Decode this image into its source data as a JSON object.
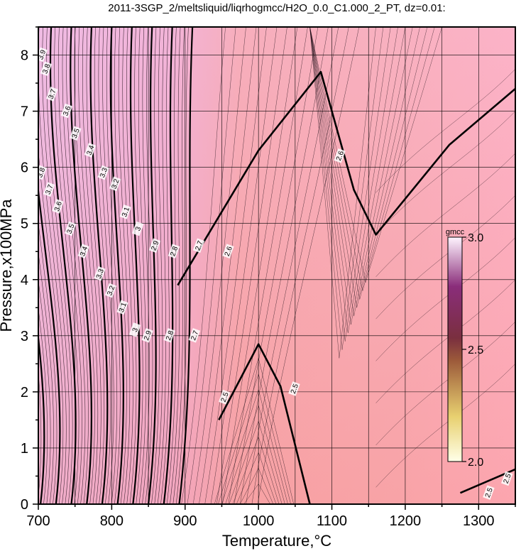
{
  "chart_data": {
    "type": "heatmap",
    "title": "2011-3SGP_2/meltsliquid/liqrhogmcc/H2O_0.0_C1.000_2_PT, dz=0.01:",
    "xlabel": "Temperature,°C",
    "ylabel": "Pressure,x100MPa",
    "xlim": [
      700,
      1350
    ],
    "ylim": [
      0,
      8.5
    ],
    "x_ticks": [
      700,
      800,
      900,
      1000,
      1100,
      1200,
      1300
    ],
    "y_ticks": [
      0,
      1,
      2,
      3,
      4,
      5,
      6,
      7,
      8
    ],
    "x_tick_labels": [
      "700",
      "800",
      "900",
      "1000",
      "1100",
      "1200",
      "1300"
    ],
    "y_tick_labels": [
      "0",
      "1",
      "2",
      "3",
      "4",
      "5",
      "6",
      "7",
      "8"
    ],
    "grid": true,
    "contour_interval": 0.01,
    "colorbar": {
      "label": "gmcc",
      "range": [
        2.0,
        3.0
      ],
      "ticks": [
        2.0,
        2.5,
        3.0
      ],
      "tick_labels": [
        "2.0",
        "2.5",
        "3.0"
      ],
      "colors": [
        "#ffffe0",
        "#8a4a3a",
        "#f8f0ff"
      ]
    },
    "background_colors": {
      "low_T_high_density": "#e9b3dc",
      "mid": "#f3a2a8",
      "high_T": "#fba7b5"
    },
    "bold_contours": [
      {
        "value": "2.5",
        "points": [
          [
            946,
            1.5
          ],
          [
            1000,
            2.85
          ],
          [
            1030,
            2.1
          ],
          [
            1070,
            0
          ]
        ],
        "labels": [
          "2.5",
          "2.5"
        ]
      },
      {
        "value": "2.6",
        "points": [
          [
            890,
            3.9
          ],
          [
            1000,
            6.3
          ],
          [
            1085,
            7.7
          ],
          [
            1130,
            5.6
          ],
          [
            1160,
            4.8
          ],
          [
            1260,
            6.4
          ],
          [
            1350,
            7.4
          ]
        ],
        "labels": [
          "2.6",
          "2.6"
        ]
      },
      {
        "value": "2.5",
        "points": [
          [
            1275,
            0.2
          ],
          [
            1350,
            0.62
          ]
        ],
        "labels": [
          "2.5",
          "2.5"
        ]
      }
    ],
    "contour_labels": [
      {
        "text": "3.9",
        "x": 706,
        "y": 8.0
      },
      {
        "text": "3.8",
        "x": 712,
        "y": 7.75
      },
      {
        "text": "3.7",
        "x": 720,
        "y": 7.3
      },
      {
        "text": "3.6",
        "x": 740,
        "y": 7.0
      },
      {
        "text": "3.5",
        "x": 752,
        "y": 6.6
      },
      {
        "text": "3.4",
        "x": 772,
        "y": 6.3
      },
      {
        "text": "3.3",
        "x": 790,
        "y": 5.9
      },
      {
        "text": "3.2",
        "x": 806,
        "y": 5.7
      },
      {
        "text": "3.1",
        "x": 820,
        "y": 5.2
      },
      {
        "text": "3",
        "x": 837,
        "y": 4.9
      },
      {
        "text": "2.9",
        "x": 860,
        "y": 4.6
      },
      {
        "text": "2.8",
        "x": 886,
        "y": 4.5
      },
      {
        "text": "2.7",
        "x": 920,
        "y": 4.6
      },
      {
        "text": "3.8",
        "x": 705,
        "y": 5.9
      },
      {
        "text": "3.7",
        "x": 716,
        "y": 5.6
      },
      {
        "text": "3.6",
        "x": 728,
        "y": 5.3
      },
      {
        "text": "3.5",
        "x": 745,
        "y": 4.9
      },
      {
        "text": "3.4",
        "x": 763,
        "y": 4.5
      },
      {
        "text": "3.3",
        "x": 785,
        "y": 4.1
      },
      {
        "text": "3.2",
        "x": 800,
        "y": 3.8
      },
      {
        "text": "3.1",
        "x": 816,
        "y": 3.5
      },
      {
        "text": "3",
        "x": 833,
        "y": 3.1
      },
      {
        "text": "2.9",
        "x": 850,
        "y": 3.0
      },
      {
        "text": "2.8",
        "x": 880,
        "y": 3.0
      },
      {
        "text": "2.7",
        "x": 914,
        "y": 3.0
      },
      {
        "text": "2.6",
        "x": 960,
        "y": 4.5
      },
      {
        "text": "2.6",
        "x": 1112,
        "y": 6.2
      },
      {
        "text": "2.5",
        "x": 955,
        "y": 1.9
      },
      {
        "text": "2.5",
        "x": 1050,
        "y": 2.05
      },
      {
        "text": "2.5",
        "x": 1315,
        "y": 0.2
      },
      {
        "text": "2.5",
        "x": 1340,
        "y": 0.45
      }
    ]
  }
}
